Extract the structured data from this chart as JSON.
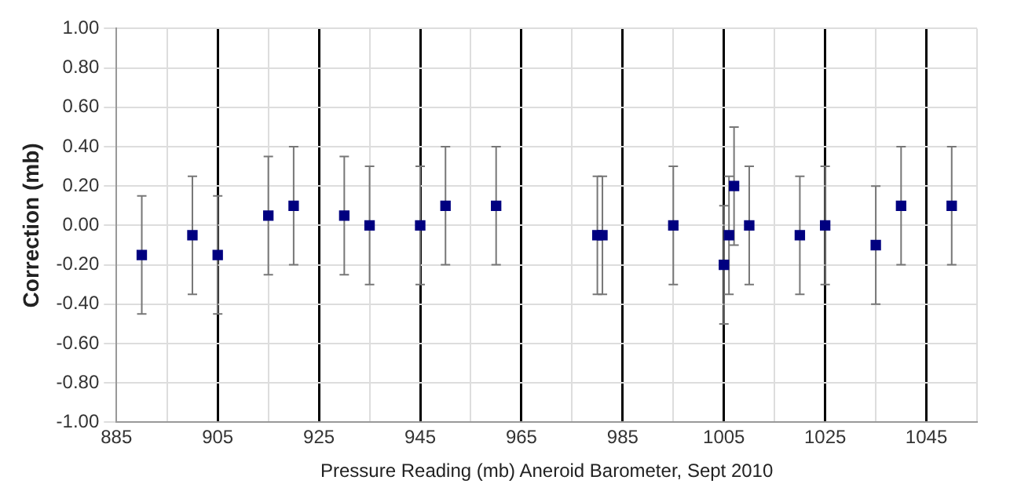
{
  "chart_data": {
    "type": "scatter",
    "xlabel": "Pressure Reading (mb) Aneroid Barometer, Sept 2010",
    "ylabel": "Correction (mb)",
    "x": [
      890,
      900,
      905,
      915,
      920,
      930,
      935,
      945,
      950,
      960,
      980,
      981,
      995,
      1005,
      1006,
      1007,
      1010,
      1020,
      1025,
      1035,
      1040,
      1050
    ],
    "series": [
      {
        "color": "#000080",
        "values": [
          -0.15,
          -0.05,
          -0.15,
          0.05,
          0.1,
          0.05,
          0,
          0,
          0.1,
          0.1,
          -0.05,
          -0.05,
          0,
          -0.2,
          -0.05,
          0.2,
          0,
          -0.05,
          0,
          -0.1,
          0.1,
          0.1
        ],
        "errors": [
          0.3,
          0.3,
          0.3,
          0.3,
          0.3,
          0.3,
          0.3,
          0.3,
          0.3,
          0.3,
          0.3,
          0.3,
          0.3,
          0.3,
          0.3,
          0.3,
          0.3,
          0.3,
          0.3,
          0.3,
          0.3,
          0.3
        ]
      }
    ],
    "xlim": [
      885,
      1055
    ],
    "xticks": [
      885,
      {
        "value": 895,
        "label": null
      },
      905,
      {
        "value": 915,
        "label": null
      },
      925,
      {
        "value": 935,
        "label": null
      },
      945,
      {
        "value": 955,
        "label": null
      },
      965,
      {
        "value": 975,
        "label": null
      },
      985,
      {
        "value": 995,
        "label": null
      },
      1005,
      {
        "value": 1015,
        "label": null
      },
      1025,
      {
        "value": 1035,
        "label": null
      },
      1045,
      {
        "value": 1055,
        "label": null
      }
    ],
    "ylim": [
      -1,
      1
    ],
    "yticks": [
      {
        "value": -1,
        "label": "-1.00"
      },
      {
        "value": -0.8,
        "label": "-0.80"
      },
      {
        "value": -0.6,
        "label": "-0.60"
      },
      {
        "value": -0.4,
        "label": "-0.40"
      },
      {
        "value": -0.2,
        "label": "-0.20"
      },
      {
        "value": 0,
        "label": "0.00"
      },
      {
        "value": 0.2,
        "label": "0.20"
      },
      {
        "value": 0.4,
        "label": "0.40"
      },
      {
        "value": 0.6,
        "label": "0.60"
      },
      {
        "value": 0.8,
        "label": "0.80"
      },
      {
        "value": 1,
        "label": "1.00"
      }
    ],
    "grid": true,
    "legend": false,
    "marker": "square"
  }
}
